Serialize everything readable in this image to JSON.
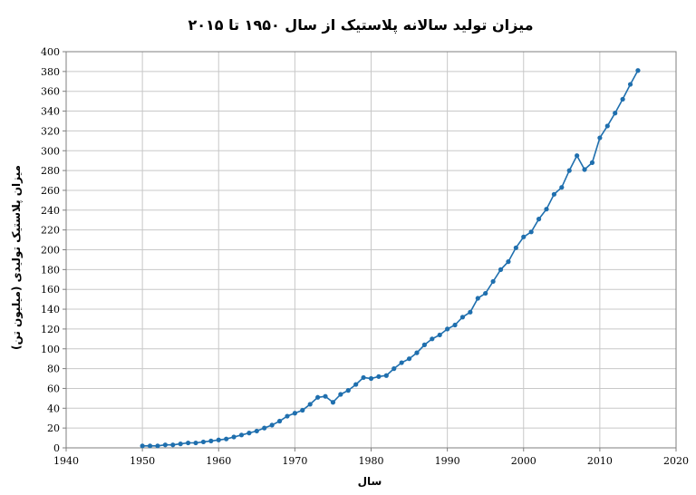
{
  "chart_data": {
    "type": "line",
    "title": "میزان تولید سالانه پلاستیک از سال ۱۹۵۰ تا ۲۰۱۵",
    "xlabel": "سال",
    "ylabel": "میزان پلاستیک تولیدی (میلیون تن)",
    "xlim": [
      1940,
      2020
    ],
    "ylim": [
      0,
      400
    ],
    "x_ticks": [
      1940,
      1950,
      1960,
      1970,
      1980,
      1990,
      2000,
      2010,
      2020
    ],
    "y_ticks": [
      0,
      20,
      40,
      60,
      80,
      100,
      120,
      140,
      160,
      180,
      200,
      220,
      240,
      260,
      280,
      300,
      320,
      340,
      360,
      380,
      400
    ],
    "grid": true,
    "legend": "none",
    "series_color": "#1f6fae",
    "series": [
      {
        "x": [
          1950,
          1951,
          1952,
          1953,
          1954,
          1955,
          1956,
          1957,
          1958,
          1959,
          1960,
          1961,
          1962,
          1963,
          1964,
          1965,
          1966,
          1967,
          1968,
          1969,
          1970,
          1971,
          1972,
          1973,
          1974,
          1975,
          1976,
          1977,
          1978,
          1979,
          1980,
          1981,
          1982,
          1983,
          1984,
          1985,
          1986,
          1987,
          1988,
          1989,
          1990,
          1991,
          1992,
          1993,
          1994,
          1995,
          1996,
          1997,
          1998,
          1999,
          2000,
          2001,
          2002,
          2003,
          2004,
          2005,
          2006,
          2007,
          2008,
          2009,
          2010,
          2011,
          2012,
          2013,
          2014,
          2015
        ],
        "values": [
          2,
          2,
          2,
          3,
          3,
          4,
          5,
          5,
          6,
          7,
          8,
          9,
          11,
          13,
          15,
          17,
          20,
          23,
          27,
          32,
          35,
          38,
          44,
          51,
          52,
          46,
          54,
          58,
          64,
          71,
          70,
          72,
          73,
          80,
          86,
          90,
          96,
          104,
          110,
          114,
          120,
          124,
          132,
          137,
          151,
          156,
          168,
          180,
          188,
          202,
          213,
          218,
          231,
          241,
          256,
          263,
          280,
          295,
          281,
          288,
          313,
          325,
          338,
          352,
          367,
          381
        ]
      }
    ]
  }
}
